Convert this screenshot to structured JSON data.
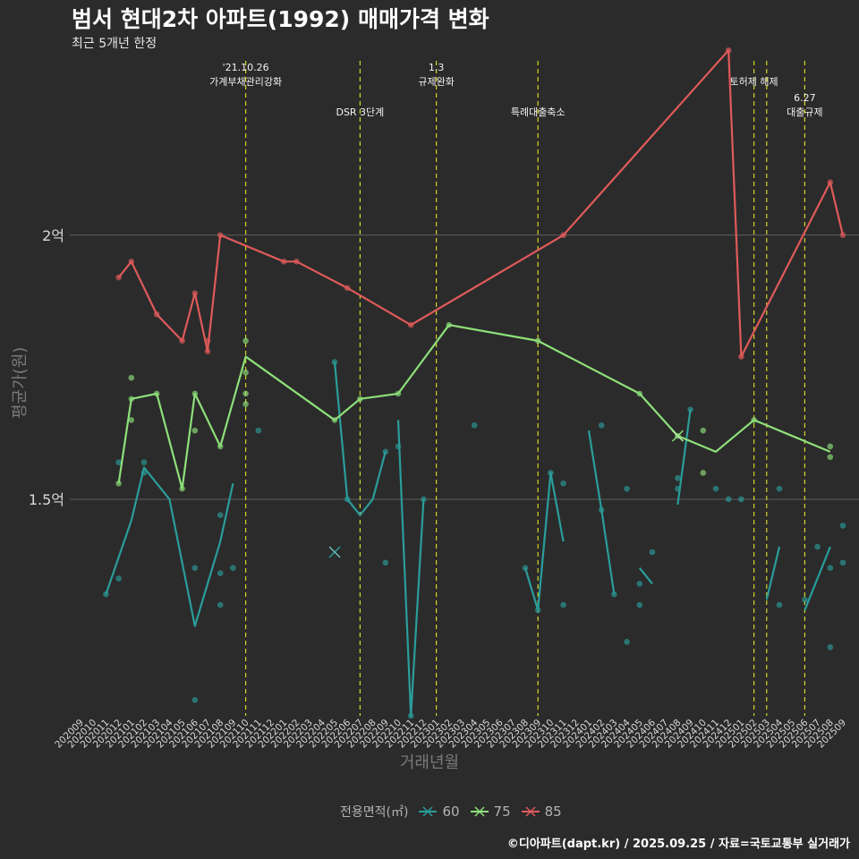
{
  "header": {
    "title": "범서 현대2차 아파트(1992) 매매가격 변화",
    "subtitle": "최근 5개년 한정"
  },
  "caption": "©디아파트(dapt.kr) / 2025.09.25 / 자료=국토교통부 실거래가",
  "chart_data": {
    "type": "line",
    "title": "범서 현대2차 아파트(1992) 매매가격 변화",
    "subtitle": "최근 5개년 한정",
    "xlabel": "거래년월",
    "ylabel": "평균가(원)",
    "x_range": [
      1,
      61
    ],
    "ylim": [
      10900,
      23300
    ],
    "y_ticks": [
      {
        "value": 15000,
        "label": "1.5억"
      },
      {
        "value": 20000,
        "label": "2억"
      }
    ],
    "x_ticks": [
      "202009",
      "202010",
      "202011",
      "202012",
      "202101",
      "202102",
      "202103",
      "202104",
      "202105",
      "202106",
      "202107",
      "202108",
      "202109",
      "202110",
      "202111",
      "202112",
      "202201",
      "202202",
      "202203",
      "202204",
      "202205",
      "202206",
      "202207",
      "202208",
      "202209",
      "202210",
      "202211",
      "202212",
      "202301",
      "202302",
      "202303",
      "202304",
      "202305",
      "202306",
      "202307",
      "202308",
      "202309",
      "202310",
      "202311",
      "202312",
      "202401",
      "202402",
      "202403",
      "202404",
      "202405",
      "202406",
      "202407",
      "202408",
      "202409",
      "202410",
      "202411",
      "202412",
      "202501",
      "202502",
      "202503",
      "202504",
      "202505",
      "202506",
      "202507",
      "202508",
      "202509"
    ],
    "legend_title": "전용면적(㎡)",
    "events": [
      {
        "x": 14,
        "lines": [
          "'21.10.26",
          "가계부채관리강화"
        ],
        "row": 0
      },
      {
        "x": 23,
        "lines": [
          "DSR 3단계"
        ],
        "row": 1
      },
      {
        "x": 29,
        "lines": [
          "1.3",
          "규제완화"
        ],
        "row": 0
      },
      {
        "x": 37,
        "lines": [
          "특례대출축소"
        ],
        "row": 1
      },
      {
        "x": 54,
        "lines": [
          "토허제 해제"
        ],
        "row": 0
      },
      {
        "x": 55,
        "lines": [],
        "row": 0
      },
      {
        "x": 58,
        "lines": [
          "6.27",
          "대출규제"
        ],
        "row": 1
      }
    ],
    "series": [
      {
        "name": "60",
        "color": "#2a9d9a",
        "line": [
          [
            3,
            13200
          ],
          [
            5,
            14600
          ],
          [
            6,
            15600
          ],
          [
            8,
            15000
          ],
          [
            10,
            12600
          ],
          [
            12,
            14200
          ],
          [
            13,
            15300
          ],
          [
            null,
            null
          ],
          [
            21,
            17600
          ],
          [
            22,
            15000
          ],
          [
            23,
            14700
          ],
          [
            24,
            15000
          ],
          [
            25,
            15900
          ],
          [
            null,
            null
          ],
          [
            26,
            16500
          ],
          [
            27,
            10900
          ],
          [
            28,
            15000
          ],
          [
            null,
            null
          ],
          [
            36,
            13700
          ],
          [
            37,
            12900
          ],
          [
            38,
            15500
          ],
          [
            39,
            14200
          ],
          [
            null,
            null
          ],
          [
            41,
            16300
          ],
          [
            42,
            14800
          ],
          [
            43,
            13200
          ],
          [
            null,
            null
          ],
          [
            45,
            13700
          ],
          [
            46,
            13400
          ],
          [
            null,
            null
          ],
          [
            48,
            14900
          ],
          [
            49,
            16700
          ],
          [
            null,
            null
          ],
          [
            55,
            13100
          ],
          [
            56,
            14100
          ],
          [
            null,
            null
          ],
          [
            58,
            12900
          ],
          [
            59,
            13500
          ],
          [
            60,
            14100
          ]
        ],
        "points": [
          [
            3,
            13200
          ],
          [
            4,
            15700
          ],
          [
            4,
            13500
          ],
          [
            6,
            15700
          ],
          [
            6,
            15500
          ],
          [
            10,
            13700
          ],
          [
            10,
            11200
          ],
          [
            12,
            14700
          ],
          [
            12,
            13600
          ],
          [
            12,
            13000
          ],
          [
            13,
            13700
          ],
          [
            15,
            16300
          ],
          [
            21,
            17600
          ],
          [
            22,
            15000
          ],
          [
            25,
            15900
          ],
          [
            25,
            13800
          ],
          [
            26,
            16000
          ],
          [
            27,
            10900
          ],
          [
            28,
            15000
          ],
          [
            32,
            16400
          ],
          [
            36,
            13700
          ],
          [
            37,
            12900
          ],
          [
            38,
            15500
          ],
          [
            39,
            15300
          ],
          [
            39,
            13000
          ],
          [
            42,
            16400
          ],
          [
            42,
            14800
          ],
          [
            43,
            13200
          ],
          [
            44,
            15200
          ],
          [
            44,
            12300
          ],
          [
            45,
            13000
          ],
          [
            45,
            13400
          ],
          [
            46,
            14000
          ],
          [
            48,
            15200
          ],
          [
            48,
            15400
          ],
          [
            49,
            16700
          ],
          [
            51,
            15200
          ],
          [
            52,
            15000
          ],
          [
            53,
            15000
          ],
          [
            56,
            13000
          ],
          [
            56,
            15200
          ],
          [
            58,
            13100
          ],
          [
            59,
            14100
          ],
          [
            60,
            13700
          ],
          [
            60,
            12200
          ],
          [
            61,
            13800
          ],
          [
            61,
            14500
          ]
        ],
        "markers": [
          [
            21,
            14000
          ]
        ]
      },
      {
        "name": "75",
        "color": "#8ee07a",
        "line": [
          [
            4,
            15300
          ],
          [
            5,
            16900
          ],
          [
            7,
            17000
          ],
          [
            9,
            15200
          ],
          [
            10,
            17000
          ],
          [
            12,
            16000
          ],
          [
            14,
            17700
          ],
          [
            21,
            16500
          ],
          [
            23,
            16900
          ],
          [
            26,
            17000
          ],
          [
            30,
            18300
          ],
          [
            37,
            18000
          ],
          [
            45,
            17000
          ],
          [
            48,
            16200
          ],
          [
            51,
            15900
          ],
          [
            54,
            16500
          ],
          [
            60,
            15900
          ]
        ],
        "points": [
          [
            4,
            15300
          ],
          [
            5,
            16900
          ],
          [
            5,
            17300
          ],
          [
            5,
            16500
          ],
          [
            7,
            17000
          ],
          [
            9,
            15200
          ],
          [
            10,
            17000
          ],
          [
            10,
            16300
          ],
          [
            12,
            16000
          ],
          [
            14,
            17000
          ],
          [
            14,
            17400
          ],
          [
            14,
            18000
          ],
          [
            14,
            16800
          ],
          [
            21,
            16500
          ],
          [
            23,
            16900
          ],
          [
            26,
            17000
          ],
          [
            30,
            18300
          ],
          [
            37,
            18000
          ],
          [
            45,
            17000
          ],
          [
            48,
            16200
          ],
          [
            50,
            16300
          ],
          [
            50,
            15500
          ],
          [
            54,
            16500
          ],
          [
            60,
            15800
          ],
          [
            60,
            16000
          ]
        ],
        "markers": [
          [
            48,
            16200
          ]
        ]
      },
      {
        "name": "85",
        "color": "#e05a5a",
        "line": [
          [
            4,
            19200
          ],
          [
            5,
            19500
          ],
          [
            7,
            18500
          ],
          [
            9,
            18000
          ],
          [
            10,
            18900
          ],
          [
            11,
            17800
          ],
          [
            12,
            20000
          ],
          [
            17,
            19500
          ],
          [
            18,
            19500
          ],
          [
            22,
            19000
          ],
          [
            27,
            18300
          ],
          [
            39,
            20000
          ],
          [
            52,
            23500
          ],
          [
            53,
            17700
          ],
          [
            60,
            21000
          ],
          [
            61,
            20000
          ]
        ],
        "points": [
          [
            4,
            19200
          ],
          [
            5,
            19500
          ],
          [
            7,
            18500
          ],
          [
            9,
            18000
          ],
          [
            10,
            18900
          ],
          [
            11,
            17800
          ],
          [
            11,
            18000
          ],
          [
            12,
            20000
          ],
          [
            17,
            19500
          ],
          [
            18,
            19500
          ],
          [
            22,
            19000
          ],
          [
            27,
            18300
          ],
          [
            39,
            20000
          ],
          [
            52,
            23500
          ],
          [
            53,
            17700
          ],
          [
            60,
            21000
          ],
          [
            61,
            20000
          ]
        ],
        "markers": []
      }
    ]
  }
}
